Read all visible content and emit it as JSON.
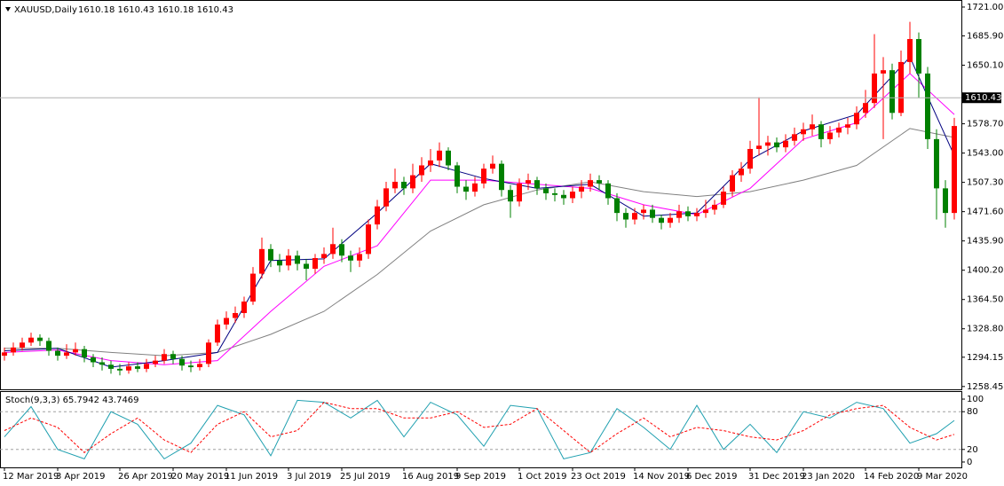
{
  "chart_data": [
    {
      "type": "candlestick",
      "title": "XAUUSD,Daily",
      "quote": "1610.18 1610.43 1610.18 1610.43",
      "up_color": "#ff0000",
      "down_color": "#008000",
      "open": [
        1296,
        1300,
        1306,
        1312,
        1318,
        1314,
        1302,
        1296,
        1300,
        1304,
        1294,
        1288,
        1285,
        1280,
        1278,
        1283,
        1280,
        1286,
        1290,
        1298,
        1292,
        1284,
        1282,
        1286,
        1312,
        1334,
        1342,
        1348,
        1362,
        1396,
        1426,
        1412,
        1406,
        1418,
        1408,
        1402,
        1415,
        1420,
        1432,
        1418,
        1412,
        1420,
        1456,
        1478,
        1500,
        1508,
        1500,
        1516,
        1528,
        1534,
        1546,
        1528,
        1502,
        1496,
        1506,
        1524,
        1530,
        1498,
        1484,
        1506,
        1510,
        1500,
        1494,
        1492,
        1488,
        1496,
        1502,
        1510,
        1506,
        1488,
        1470,
        1462,
        1470,
        1474,
        1464,
        1458,
        1464,
        1472,
        1466,
        1470,
        1474,
        1480,
        1496,
        1516,
        1524,
        1548,
        1552,
        1556,
        1550,
        1558,
        1566,
        1572,
        1578,
        1560,
        1568,
        1574,
        1578,
        1592,
        1604,
        1640,
        1644,
        1592,
        1654,
        1682,
        1640,
        1560,
        1500,
        1470
      ],
      "high": [
        1306,
        1312,
        1318,
        1324,
        1322,
        1318,
        1306,
        1310,
        1312,
        1308,
        1298,
        1294,
        1290,
        1286,
        1288,
        1288,
        1292,
        1296,
        1304,
        1302,
        1296,
        1290,
        1292,
        1316,
        1340,
        1350,
        1356,
        1368,
        1404,
        1440,
        1432,
        1420,
        1426,
        1424,
        1414,
        1420,
        1428,
        1452,
        1438,
        1424,
        1428,
        1462,
        1486,
        1508,
        1524,
        1514,
        1530,
        1538,
        1548,
        1556,
        1550,
        1532,
        1510,
        1514,
        1530,
        1540,
        1534,
        1504,
        1512,
        1518,
        1514,
        1506,
        1500,
        1498,
        1502,
        1510,
        1518,
        1516,
        1510,
        1494,
        1476,
        1476,
        1480,
        1480,
        1468,
        1470,
        1480,
        1478,
        1476,
        1486,
        1486,
        1502,
        1522,
        1532,
        1558,
        1611,
        1564,
        1562,
        1566,
        1574,
        1580,
        1590,
        1582,
        1576,
        1580,
        1586,
        1600,
        1620,
        1688,
        1660,
        1652,
        1668,
        1703,
        1690,
        1648,
        1572,
        1510,
        1586
      ],
      "low": [
        1290,
        1296,
        1302,
        1308,
        1308,
        1296,
        1290,
        1292,
        1296,
        1288,
        1282,
        1278,
        1274,
        1272,
        1274,
        1276,
        1276,
        1282,
        1286,
        1286,
        1278,
        1276,
        1278,
        1282,
        1308,
        1328,
        1336,
        1342,
        1358,
        1390,
        1404,
        1398,
        1400,
        1400,
        1388,
        1396,
        1408,
        1414,
        1410,
        1398,
        1404,
        1414,
        1450,
        1472,
        1494,
        1492,
        1494,
        1508,
        1520,
        1526,
        1522,
        1494,
        1486,
        1490,
        1500,
        1518,
        1490,
        1464,
        1478,
        1498,
        1492,
        1486,
        1484,
        1480,
        1482,
        1488,
        1496,
        1498,
        1480,
        1460,
        1452,
        1456,
        1462,
        1458,
        1450,
        1452,
        1458,
        1460,
        1460,
        1464,
        1468,
        1476,
        1490,
        1508,
        1518,
        1540,
        1540,
        1544,
        1544,
        1552,
        1558,
        1564,
        1550,
        1554,
        1562,
        1566,
        1572,
        1586,
        1598,
        1560,
        1584,
        1588,
        1640,
        1610,
        1548,
        1462,
        1452,
        1462
      ],
      "close": [
        1300,
        1306,
        1312,
        1318,
        1314,
        1302,
        1296,
        1300,
        1304,
        1294,
        1288,
        1285,
        1280,
        1278,
        1283,
        1280,
        1286,
        1290,
        1298,
        1292,
        1284,
        1282,
        1286,
        1312,
        1334,
        1342,
        1348,
        1362,
        1396,
        1426,
        1412,
        1406,
        1418,
        1408,
        1402,
        1415,
        1420,
        1432,
        1418,
        1412,
        1420,
        1456,
        1478,
        1500,
        1508,
        1500,
        1516,
        1528,
        1534,
        1546,
        1528,
        1502,
        1496,
        1506,
        1524,
        1530,
        1498,
        1484,
        1506,
        1510,
        1500,
        1494,
        1492,
        1488,
        1496,
        1502,
        1510,
        1506,
        1488,
        1470,
        1462,
        1470,
        1474,
        1464,
        1458,
        1464,
        1472,
        1466,
        1470,
        1474,
        1480,
        1496,
        1516,
        1524,
        1548,
        1552,
        1556,
        1550,
        1558,
        1566,
        1572,
        1578,
        1560,
        1568,
        1574,
        1578,
        1592,
        1604,
        1640,
        1644,
        1592,
        1654,
        1682,
        1640,
        1560,
        1500,
        1470,
        1576
      ],
      "series": [
        {
          "color": "#808080",
          "x": [
            0,
            6,
            12,
            18,
            24,
            30,
            36,
            42,
            48,
            54,
            60,
            66,
            72,
            78,
            84,
            90,
            96,
            102,
            107
          ],
          "values": [
            1305,
            1305,
            1300,
            1296,
            1300,
            1322,
            1350,
            1395,
            1448,
            1480,
            1498,
            1508,
            1496,
            1490,
            1496,
            1510,
            1528,
            1573,
            1562
          ]
        },
        {
          "color": "#ff00ff",
          "x": [
            0,
            6,
            12,
            18,
            24,
            30,
            36,
            42,
            48,
            54,
            60,
            66,
            72,
            78,
            84,
            90,
            96,
            102,
            107
          ],
          "values": [
            1300,
            1303,
            1290,
            1285,
            1290,
            1350,
            1405,
            1430,
            1510,
            1510,
            1505,
            1500,
            1480,
            1468,
            1500,
            1560,
            1580,
            1640,
            1590
          ]
        },
        {
          "color": "#000080",
          "x": [
            0,
            6,
            12,
            18,
            24,
            30,
            36,
            42,
            48,
            54,
            60,
            66,
            72,
            78,
            84,
            90,
            96,
            102,
            107
          ],
          "values": [
            1302,
            1305,
            1282,
            1290,
            1300,
            1412,
            1414,
            1470,
            1530,
            1512,
            1500,
            1505,
            1466,
            1470,
            1535,
            1570,
            1590,
            1660,
            1540
          ]
        }
      ],
      "xlim": [
        -0.5,
        107.8
      ],
      "xticks": [
        {
          "value": 0,
          "label": "12 Mar 2019"
        },
        {
          "value": 6,
          "label": "3 Apr 2019"
        },
        {
          "value": 13,
          "label": "26 Apr 2019"
        },
        {
          "value": 19,
          "label": "20 May 2019"
        },
        {
          "value": 25,
          "label": "11 Jun 2019"
        },
        {
          "value": 32,
          "label": "3 Jul 2019"
        },
        {
          "value": 38,
          "label": "25 Jul 2019"
        },
        {
          "value": 45,
          "label": "16 Aug 2019"
        },
        {
          "value": 51,
          "label": "9 Sep 2019"
        },
        {
          "value": 58,
          "label": "1 Oct 2019"
        },
        {
          "value": 64,
          "label": "23 Oct 2019"
        },
        {
          "value": 71,
          "label": "14 Nov 2019"
        },
        {
          "value": 77,
          "label": "6 Dec 2019"
        },
        {
          "value": 84,
          "label": "31 Dec 2019"
        },
        {
          "value": 90,
          "label": "23 Jan 2020"
        },
        {
          "value": 97,
          "label": "14 Feb 2020"
        },
        {
          "value": 103,
          "label": "9 Mar 2020"
        }
      ],
      "ylim": [
        1255,
        1729.6
      ],
      "yticks": [
        {
          "value": 1721,
          "label": "1721.00"
        },
        {
          "value": 1685.9,
          "label": "1685.90"
        },
        {
          "value": 1650.1,
          "label": "1650.10"
        },
        {
          "value": 1578.7,
          "label": "1578.70"
        },
        {
          "value": 1543,
          "label": "1543.00"
        },
        {
          "value": 1507.3,
          "label": "1507.30"
        },
        {
          "value": 1471.6,
          "label": "1471.60"
        },
        {
          "value": 1435.9,
          "label": "1435.90"
        },
        {
          "value": 1400.2,
          "label": "1400.20"
        },
        {
          "value": 1364.5,
          "label": "1364.50"
        },
        {
          "value": 1328.8,
          "label": "1328.80"
        },
        {
          "value": 1294.15,
          "label": "1294.15"
        },
        {
          "value": 1258.45,
          "label": "1258.45"
        }
      ],
      "price_line": {
        "value": 1610.43,
        "label": "1610.43"
      }
    },
    {
      "type": "line",
      "title": "Stoch(9,3,3) 65.7942 43.7469",
      "xlim": [
        -0.5,
        107.8
      ],
      "ylim": [
        -8.5,
        111.3
      ],
      "yticks": [
        0,
        20,
        80,
        100
      ],
      "grid_ticks": [
        20,
        80
      ],
      "series": [
        {
          "color": "#20a0b0",
          "x": [
            0,
            3,
            6,
            9,
            12,
            15,
            18,
            21,
            24,
            27,
            30,
            33,
            36,
            39,
            42,
            45,
            48,
            51,
            54,
            57,
            60,
            63,
            66,
            69,
            72,
            75,
            78,
            81,
            84,
            87,
            90,
            93,
            96,
            99,
            102,
            105,
            107
          ],
          "values": [
            40,
            88,
            20,
            5,
            80,
            60,
            5,
            30,
            90,
            75,
            10,
            98,
            95,
            70,
            98,
            40,
            95,
            75,
            25,
            90,
            85,
            5,
            15,
            85,
            55,
            20,
            90,
            20,
            60,
            15,
            80,
            70,
            95,
            85,
            30,
            45,
            66
          ]
        },
        {
          "color": "#ff0000",
          "dash": true,
          "x": [
            0,
            3,
            6,
            9,
            12,
            15,
            18,
            21,
            24,
            27,
            30,
            33,
            36,
            39,
            42,
            45,
            48,
            51,
            54,
            57,
            60,
            63,
            66,
            69,
            72,
            75,
            78,
            81,
            84,
            87,
            90,
            93,
            96,
            99,
            102,
            105,
            107
          ],
          "values": [
            50,
            70,
            55,
            15,
            45,
            70,
            35,
            15,
            60,
            80,
            40,
            50,
            95,
            85,
            85,
            70,
            70,
            80,
            55,
            60,
            85,
            50,
            15,
            45,
            70,
            40,
            55,
            50,
            40,
            35,
            50,
            75,
            85,
            90,
            55,
            35,
            44
          ]
        }
      ]
    }
  ]
}
